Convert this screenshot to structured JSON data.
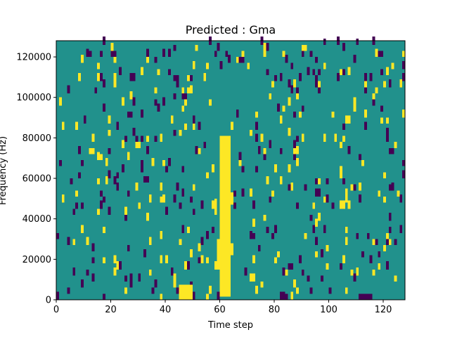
{
  "chart_data": {
    "type": "heatmap",
    "title": "Predicted : Gma",
    "xlabel": "Time step",
    "ylabel": "Frequency (Hz)",
    "xlim": [
      0,
      128
    ],
    "ylim": [
      0,
      128000
    ],
    "xticks": [
      0,
      20,
      40,
      60,
      80,
      100,
      120
    ],
    "yticks": [
      0,
      20000,
      40000,
      60000,
      80000,
      100000,
      120000
    ],
    "xtick_labels": [
      "0",
      "20",
      "40",
      "60",
      "80",
      "100",
      "120"
    ],
    "ytick_labels": [
      "0",
      "20000",
      "40000",
      "60000",
      "80000",
      "100000",
      "120000"
    ],
    "grid": false,
    "colors": {
      "background": "#21918c",
      "high": "#fde725",
      "low": "#440154"
    },
    "value_scale": {
      "low": 0,
      "background": 0.5,
      "high": 1
    },
    "n_time_steps": 128,
    "n_freq_bins": 128,
    "regions": [
      {
        "value": "high",
        "t0": 60,
        "t1": 64,
        "f0": 1500,
        "f1": 81000
      },
      {
        "value": "high",
        "t0": 59,
        "t1": 61,
        "f0": 15000,
        "f1": 30000
      },
      {
        "value": "high",
        "t0": 45,
        "t1": 50,
        "f0": 0,
        "f1": 7500
      },
      {
        "value": "high",
        "t0": 64,
        "t1": 65,
        "f0": 22000,
        "f1": 28000
      },
      {
        "value": "high",
        "t0": 58,
        "t1": 59,
        "f0": 42000,
        "f1": 50000
      },
      {
        "value": "high",
        "t0": 64,
        "t1": 65,
        "f0": 47000,
        "f1": 53000
      },
      {
        "value": "low",
        "t0": 111,
        "t1": 116,
        "f0": 0,
        "f1": 3000
      },
      {
        "value": "low",
        "t0": 85,
        "t1": 87,
        "f0": 15000,
        "f1": 18000
      },
      {
        "value": "low",
        "t0": 32,
        "t1": 34,
        "f0": 58000,
        "f1": 61000
      }
    ],
    "sparse_cells": {
      "high_fraction": 0.012,
      "low_fraction": 0.014,
      "cell_height_bins": 3
    }
  }
}
